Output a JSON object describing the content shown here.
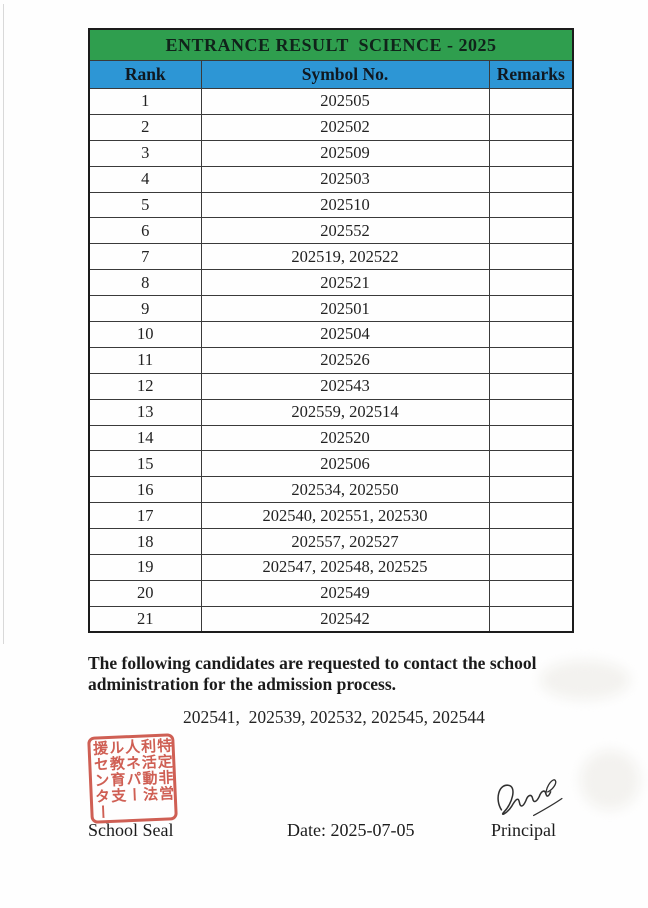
{
  "title": "ENTRANCE RESULT  SCIENCE - 2025",
  "table": {
    "headers": [
      "Rank",
      "Symbol No.",
      "Remarks"
    ],
    "rows": [
      {
        "rank": "1",
        "symbols": "202505",
        "remarks": ""
      },
      {
        "rank": "2",
        "symbols": "202502",
        "remarks": ""
      },
      {
        "rank": "3",
        "symbols": "202509",
        "remarks": ""
      },
      {
        "rank": "4",
        "symbols": "202503",
        "remarks": ""
      },
      {
        "rank": "5",
        "symbols": "202510",
        "remarks": ""
      },
      {
        "rank": "6",
        "symbols": "202552",
        "remarks": ""
      },
      {
        "rank": "7",
        "symbols": "202519, 202522",
        "remarks": ""
      },
      {
        "rank": "8",
        "symbols": "202521",
        "remarks": ""
      },
      {
        "rank": "9",
        "symbols": "202501",
        "remarks": ""
      },
      {
        "rank": "10",
        "symbols": "202504",
        "remarks": ""
      },
      {
        "rank": "11",
        "symbols": "202526",
        "remarks": ""
      },
      {
        "rank": "12",
        "symbols": "202543",
        "remarks": ""
      },
      {
        "rank": "13",
        "symbols": "202559, 202514",
        "remarks": ""
      },
      {
        "rank": "14",
        "symbols": "202520",
        "remarks": ""
      },
      {
        "rank": "15",
        "symbols": "202506",
        "remarks": ""
      },
      {
        "rank": "16",
        "symbols": "202534, 202550",
        "remarks": ""
      },
      {
        "rank": "17",
        "symbols": "202540, 202551, 202530",
        "remarks": ""
      },
      {
        "rank": "18",
        "symbols": "202557, 202527",
        "remarks": ""
      },
      {
        "rank": "19",
        "symbols": "202547, 202548, 202525",
        "remarks": ""
      },
      {
        "rank": "20",
        "symbols": "202549",
        "remarks": ""
      },
      {
        "rank": "21",
        "symbols": "202542",
        "remarks": ""
      }
    ]
  },
  "notice": {
    "text": "The following candidates are requested to contact the school administration for the admission process.",
    "symbols": "202541,  202539, 202532, 202545, 202544"
  },
  "footer": {
    "seal_text": "特定非営\n利活動法\n人ネパー\nル教育支\n援センター",
    "seal_label": "School Seal",
    "date_label": "Date: 2025-07-05",
    "principal_label": "Principal"
  },
  "colors": {
    "title_bg": "#2f9e4e",
    "header_bg": "#2d96d5",
    "seal_red": "#c94a3d"
  }
}
